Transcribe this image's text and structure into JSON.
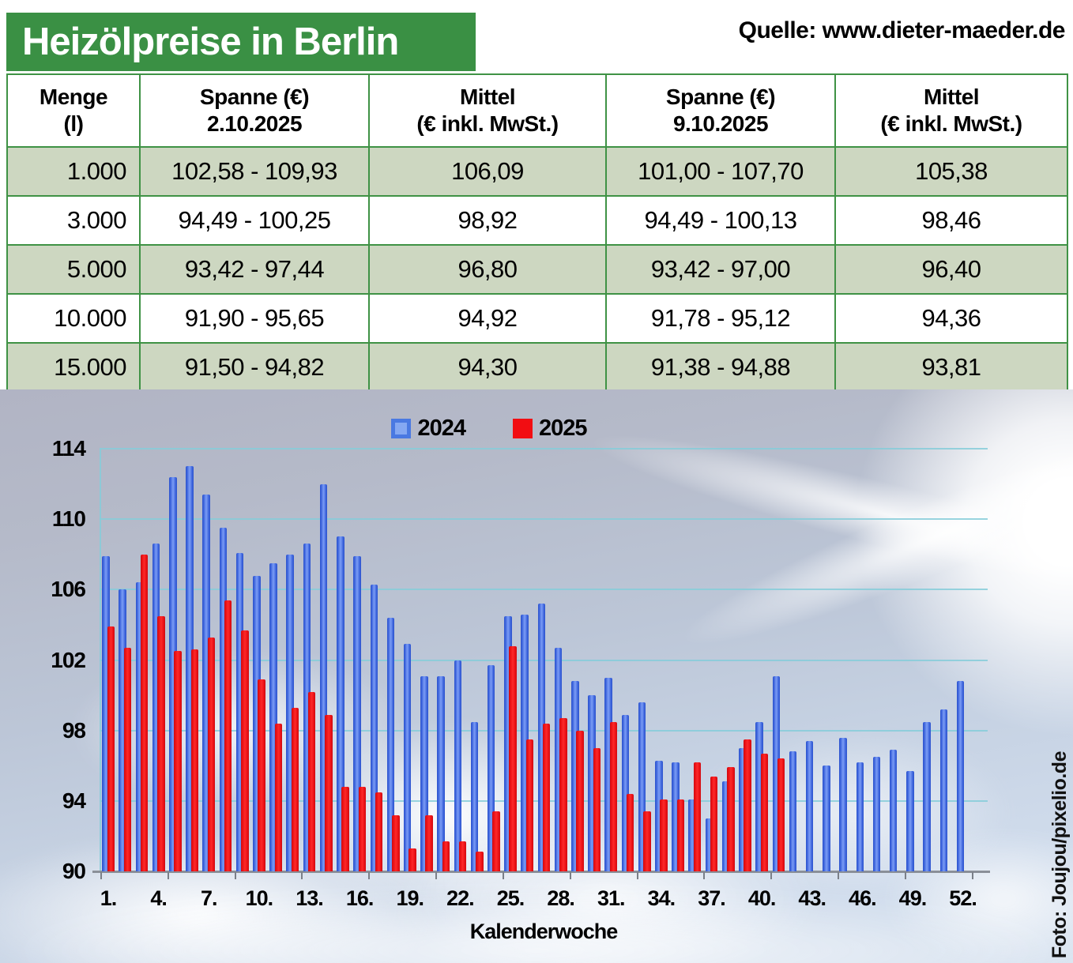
{
  "header": {
    "title": "Heizölpreise in Berlin",
    "source": "Quelle: www.dieter-maeder.de"
  },
  "table": {
    "columns": [
      "Menge\n(l)",
      "Spanne (€)\n2.10.2025",
      "Mittel\n(€ inkl. MwSt.)",
      "Spanne (€)\n9.10.2025",
      "Mittel\n(€ inkl. MwSt.)"
    ],
    "rows": [
      [
        "1.000",
        "102,58 - 109,93",
        "106,09",
        "101,00 - 107,70",
        "105,38"
      ],
      [
        "3.000",
        "94,49 - 100,25",
        "98,92",
        "94,49 - 100,13",
        "98,46"
      ],
      [
        "5.000",
        "93,42 - 97,44",
        "96,80",
        "93,42 - 97,00",
        "96,40"
      ],
      [
        "10.000",
        "91,90 - 95,65",
        "94,92",
        "91,78 - 95,12",
        "94,36"
      ],
      [
        "15.000",
        "91,50 - 94,82",
        "94,30",
        "91,38 - 94,88",
        "93,81"
      ]
    ]
  },
  "chart_data": {
    "type": "bar",
    "title": "",
    "xlabel": "Kalenderwoche",
    "ylabel": "",
    "ylim": [
      90,
      114
    ],
    "yticks": [
      90,
      94,
      98,
      102,
      106,
      110,
      114
    ],
    "grid": true,
    "legend_position": "top",
    "categories": [
      1,
      2,
      3,
      4,
      5,
      6,
      7,
      8,
      9,
      10,
      11,
      12,
      13,
      14,
      15,
      16,
      17,
      18,
      19,
      20,
      21,
      22,
      23,
      24,
      25,
      26,
      27,
      28,
      29,
      30,
      31,
      32,
      33,
      34,
      35,
      36,
      37,
      38,
      39,
      40,
      41,
      42,
      43,
      44,
      45,
      46,
      47,
      48,
      49,
      50,
      51,
      52
    ],
    "xtick_labels": [
      "1.",
      "4.",
      "7.",
      "10.",
      "13.",
      "16.",
      "19.",
      "22.",
      "25.",
      "28.",
      "31.",
      "34.",
      "37.",
      "40.",
      "43.",
      "46.",
      "49.",
      "52."
    ],
    "series": [
      {
        "name": "2024",
        "color": "#4d78e0",
        "values": [
          107.9,
          106.0,
          106.4,
          108.6,
          112.4,
          113.0,
          111.4,
          109.5,
          108.1,
          106.8,
          107.5,
          108.0,
          108.6,
          112.0,
          109.0,
          107.9,
          106.3,
          104.4,
          102.9,
          101.1,
          101.1,
          102.0,
          98.5,
          101.7,
          104.5,
          104.6,
          105.2,
          102.7,
          100.8,
          100.0,
          101.0,
          98.9,
          99.6,
          96.3,
          96.2,
          94.1,
          93.0,
          95.1,
          97.0,
          98.5,
          101.1,
          96.8,
          97.4,
          96.0,
          97.6,
          96.2,
          96.5,
          96.9,
          95.7,
          98.5,
          99.2,
          100.8
        ]
      },
      {
        "name": "2025",
        "color": "#ee1114",
        "values": [
          103.9,
          102.7,
          108.0,
          104.5,
          102.5,
          102.6,
          103.3,
          105.4,
          103.7,
          100.9,
          98.4,
          99.3,
          100.2,
          98.9,
          94.8,
          94.8,
          94.5,
          93.2,
          91.3,
          93.2,
          91.7,
          91.7,
          91.1,
          93.4,
          102.8,
          97.5,
          98.4,
          98.7,
          98.0,
          97.0,
          98.5,
          94.4,
          93.4,
          94.1,
          94.1,
          96.2,
          95.4,
          95.9,
          97.5,
          96.7,
          96.4
        ]
      }
    ]
  },
  "photo_credit": "Foto: Joujou/pixelio.de",
  "colors": {
    "header_green": "#3a9044",
    "table_row_green": "#cdd7c1",
    "table_border": "#3f9245",
    "gridline_teal": "#86ccd9",
    "bar_blue": "#4d78e0",
    "bar_red": "#ee1114"
  }
}
